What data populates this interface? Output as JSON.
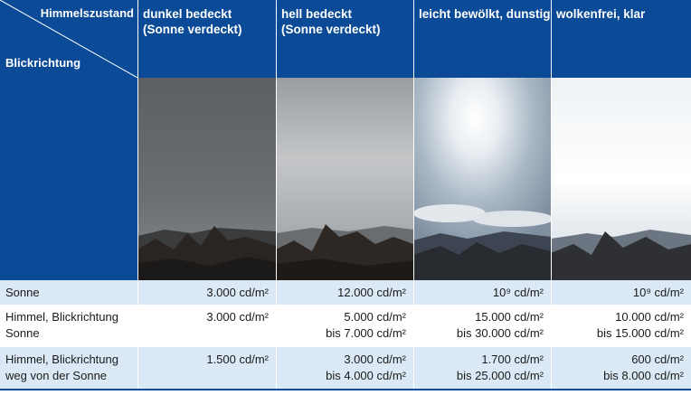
{
  "header": {
    "corner_sky_label": "Himmelszustand",
    "corner_direction_label": "Blickrichtung",
    "columns": [
      {
        "line1": "dunkel bedeckt",
        "line2": "(Sonne verdeckt)"
      },
      {
        "line1": "hell bedeckt",
        "line2": "(Sonne verdeckt)"
      },
      {
        "line1": "leicht bewölkt, dunstig",
        "line2": ""
      },
      {
        "line1": "wolkenfrei, klar",
        "line2": ""
      }
    ]
  },
  "rows": [
    {
      "label": [
        "Sonne",
        ""
      ],
      "values": [
        [
          "3.000 cd/m²",
          ""
        ],
        [
          "12.000 cd/m²",
          ""
        ],
        [
          "10⁹ cd/m²",
          ""
        ],
        [
          "10⁹ cd/m²",
          ""
        ]
      ]
    },
    {
      "label": [
        "Himmel, Blickrichtung",
        "Sonne"
      ],
      "values": [
        [
          "3.000 cd/m²",
          ""
        ],
        [
          "5.000 cd/m²",
          "bis 7.000 cd/m²"
        ],
        [
          "15.000 cd/m²",
          "bis 30.000 cd/m²"
        ],
        [
          "10.000 cd/m²",
          "bis 15.000 cd/m²"
        ]
      ]
    },
    {
      "label": [
        "Himmel, Blickrichtung",
        "weg von der Sonne"
      ],
      "values": [
        [
          "1.500 cd/m²",
          ""
        ],
        [
          "3.000 cd/m²",
          "bis 4.000 cd/m²"
        ],
        [
          "1.700 cd/m²",
          "bis 25.000 cd/m²"
        ],
        [
          "600 cd/m²",
          "bis 8.000 cd/m²"
        ]
      ]
    }
  ],
  "colors": {
    "header_blue": "#0a4a96",
    "row_tint": "#dbe9f6"
  }
}
